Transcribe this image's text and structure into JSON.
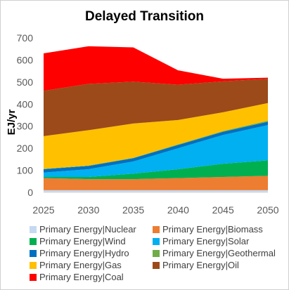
{
  "chart_data": {
    "type": "area",
    "stacked": true,
    "title": "Delayed Transition",
    "xlabel": "",
    "ylabel": "EJ/yr",
    "x": [
      2025,
      2030,
      2035,
      2040,
      2045,
      2050
    ],
    "ylim": [
      0,
      700
    ],
    "yticks": [
      0,
      100,
      200,
      300,
      400,
      500,
      600,
      700
    ],
    "grid": false,
    "legend_position": "bottom",
    "series": [
      {
        "name": "Primary Energy|Nuclear",
        "color": "#c5d9f1",
        "values": [
          10,
          10,
          10,
          10,
          10,
          10
        ]
      },
      {
        "name": "Primary Energy|Biomass",
        "color": "#ed7d31",
        "values": [
          55,
          50,
          50,
          55,
          60,
          65
        ]
      },
      {
        "name": "Primary Energy|Wind",
        "color": "#00b050",
        "values": [
          5,
          10,
          25,
          40,
          60,
          70
        ]
      },
      {
        "name": "Primary Energy|Solar",
        "color": "#00b0f0",
        "values": [
          20,
          35,
          55,
          95,
          130,
          160
        ]
      },
      {
        "name": "Primary Energy|Hydro",
        "color": "#0070c0",
        "values": [
          15,
          15,
          15,
          15,
          15,
          15
        ]
      },
      {
        "name": "Primary Energy|Geothermal",
        "color": "#70ad47",
        "values": [
          2,
          2,
          2,
          3,
          3,
          5
        ]
      },
      {
        "name": "Primary Energy|Gas",
        "color": "#ffc000",
        "values": [
          148,
          160,
          155,
          110,
          85,
          80
        ]
      },
      {
        "name": "Primary Energy|Oil",
        "color": "#9c4a1a",
        "values": [
          205,
          210,
          190,
          160,
          140,
          110
        ]
      },
      {
        "name": "Primary Energy|Coal",
        "color": "#ff0000",
        "values": [
          170,
          170,
          155,
          65,
          12,
          5
        ]
      }
    ]
  }
}
